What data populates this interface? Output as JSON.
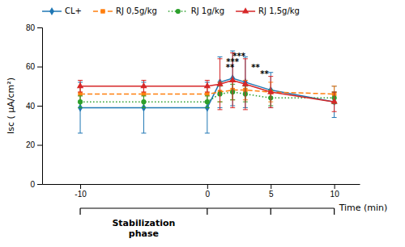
{
  "chart_data": {
    "type": "line",
    "ylabel": "Isc ( μA/cm²)",
    "xlabel": "Time (min)",
    "phase_label": "Stabilization\nphase",
    "x": [
      -10,
      -5,
      0,
      1,
      2,
      3,
      5,
      10
    ],
    "xlim": [
      -13,
      12
    ],
    "xticks": [
      -10,
      0,
      5,
      10
    ],
    "ylim": [
      0,
      80
    ],
    "yticks": [
      0,
      20,
      40,
      60,
      80
    ],
    "grid": false,
    "legend": "upper left",
    "series": [
      {
        "name": "CL+",
        "marker": "diamond",
        "line_style": "solid",
        "values": [
          39,
          39,
          39,
          52,
          54,
          52,
          48,
          42
        ],
        "errors": [
          13,
          13,
          13,
          13,
          14,
          13,
          9,
          8
        ]
      },
      {
        "name": "RJ 0,5g/kg",
        "marker": "square",
        "line_style": "dashed",
        "values": [
          46,
          46,
          46,
          47,
          48,
          48,
          47,
          46
        ],
        "errors": [
          4,
          4,
          4,
          5,
          5,
          5,
          5,
          4
        ]
      },
      {
        "name": "RJ 1g/kg",
        "marker": "circle",
        "line_style": "dotted",
        "values": [
          42,
          42,
          42,
          46,
          47,
          46,
          44,
          44
        ],
        "errors": [
          3,
          3,
          3,
          4,
          4,
          4,
          4,
          3
        ]
      },
      {
        "name": "RJ 1,5g/kg",
        "marker": "triangle",
        "line_style": "solid",
        "values": [
          50,
          50,
          50,
          51,
          53,
          51,
          47,
          42
        ],
        "errors": [
          3,
          3,
          3,
          13,
          14,
          13,
          8,
          5
        ]
      }
    ],
    "annotations": [
      {
        "text": "**",
        "x": 1.8,
        "y": 58
      },
      {
        "text": "***",
        "x": 2.0,
        "y": 61
      },
      {
        "text": "***",
        "x": 2.5,
        "y": 64
      },
      {
        "text": "**",
        "x": 3.8,
        "y": 58
      },
      {
        "text": "**",
        "x": 4.5,
        "y": 55
      }
    ]
  }
}
